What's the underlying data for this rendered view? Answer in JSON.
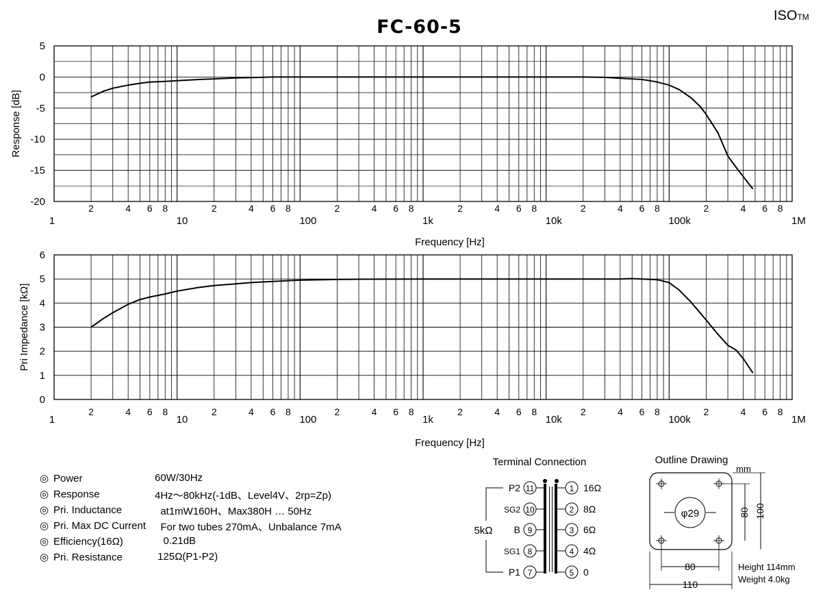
{
  "header": {
    "title": "FC-60-5",
    "brand": "ISO",
    "brand_tm": "TM"
  },
  "chart_data": [
    {
      "type": "line",
      "x_scale": "log",
      "xlim": [
        1,
        1000000
      ],
      "ylim": [
        -20,
        5
      ],
      "ylabel": "Response [dB]",
      "xlabel": "Frequency [Hz]",
      "y_ticks": [
        "5",
        "0",
        "-5",
        "-10",
        "-15",
        "-20"
      ],
      "x_decade_labels": [
        "1",
        "10",
        "100",
        "1k",
        "10k",
        "100k",
        "1M"
      ],
      "x_minor_labels": [
        "2",
        "4",
        "6",
        "8"
      ],
      "grid": true,
      "series": [
        {
          "x": [
            2,
            2.5,
            3,
            4,
            5,
            6,
            8,
            10,
            15,
            20,
            30,
            40,
            60,
            100,
            1000,
            10000,
            20000,
            30000,
            40000,
            50000,
            60000,
            70000,
            80000,
            100000,
            120000,
            150000,
            180000,
            200000,
            250000,
            300000,
            350000,
            400000,
            480000
          ],
          "y": [
            -3.2,
            -2.3,
            -1.8,
            -1.3,
            -1.0,
            -0.8,
            -0.7,
            -0.6,
            -0.4,
            -0.3,
            -0.15,
            -0.1,
            0,
            0,
            0,
            0,
            0,
            -0.05,
            -0.2,
            -0.3,
            -0.4,
            -0.6,
            -0.8,
            -1.3,
            -2.0,
            -3.3,
            -4.8,
            -6.0,
            -9.0,
            -12.7,
            -14.5,
            -16.0,
            -18.0
          ]
        }
      ]
    },
    {
      "type": "line",
      "x_scale": "log",
      "xlim": [
        1,
        1000000
      ],
      "ylim": [
        0,
        6
      ],
      "ylabel": "Pri Impedance [kΩ]",
      "xlabel": "Frequency [Hz]",
      "y_ticks": [
        "6",
        "5",
        "4",
        "3",
        "2",
        "1",
        "0"
      ],
      "x_decade_labels": [
        "1",
        "10",
        "100",
        "1k",
        "10k",
        "100k",
        "1M"
      ],
      "x_minor_labels": [
        "2",
        "4",
        "6",
        "8"
      ],
      "grid": true,
      "series": [
        {
          "x": [
            2,
            2.5,
            3,
            4,
            5,
            6,
            8,
            10,
            15,
            20,
            30,
            40,
            60,
            80,
            100,
            200,
            300,
            1000,
            10000,
            40000,
            50000,
            60000,
            80000,
            100000,
            120000,
            150000,
            200000,
            250000,
            300000,
            350000,
            400000,
            480000
          ],
          "y": [
            3.0,
            3.35,
            3.6,
            3.95,
            4.15,
            4.25,
            4.38,
            4.5,
            4.65,
            4.73,
            4.8,
            4.85,
            4.9,
            4.93,
            4.95,
            4.98,
            4.99,
            5.0,
            5.0,
            5.0,
            5.02,
            5.0,
            4.97,
            4.85,
            4.55,
            4.05,
            3.3,
            2.7,
            2.25,
            2.05,
            1.7,
            1.1
          ]
        }
      ]
    }
  ],
  "specs": [
    {
      "label": "Power",
      "value": "60W/30Hz"
    },
    {
      "label": "Response",
      "value": "4Hz～80kHz(-1dB、Level4V、2rp=Zp)"
    },
    {
      "label": "Pri. Inductance",
      "value": "  at1mW160H、Max380H … 50Hz"
    },
    {
      "label": "Pri. Max DC Current",
      "value": "  For two tubes 270mA、Unbalance 7mA"
    },
    {
      "label": "Efficiency(16Ω)",
      "value": "   0.21dB"
    },
    {
      "label": "Pri. Resistance",
      "value": " 125Ω(P1-P2)"
    }
  ],
  "spec_mark": "◎",
  "terminal": {
    "title": "Terminal Connection",
    "primary_impedance": "5kΩ",
    "left": [
      {
        "name": "P2",
        "pin": "11"
      },
      {
        "name": "SG2",
        "pin": "10"
      },
      {
        "name": "B",
        "pin": "9"
      },
      {
        "name": "SG1",
        "pin": "8"
      },
      {
        "name": "P1",
        "pin": "7"
      }
    ],
    "right": [
      {
        "pin": "1",
        "value": "16Ω"
      },
      {
        "pin": "2",
        "value": "8Ω"
      },
      {
        "pin": "3",
        "value": "6Ω"
      },
      {
        "pin": "4",
        "value": "4Ω"
      },
      {
        "pin": "5",
        "value": "0"
      }
    ]
  },
  "outline": {
    "title": "Outline Drawing",
    "unit": "mm",
    "hole_diameter": "φ29",
    "dim_80_vertical": "80",
    "dim_100_vertical": "100",
    "dim_80_horizontal": "80",
    "dim_110_horizontal": "110",
    "height": "Height 114mm",
    "weight": "Weight 4.0kg"
  }
}
